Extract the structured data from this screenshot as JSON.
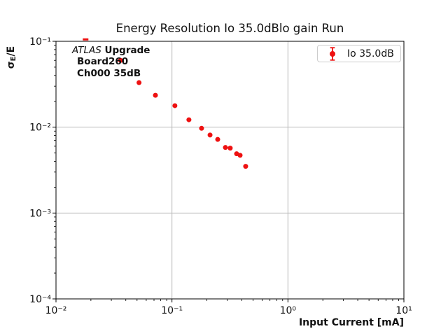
{
  "figure": {
    "background": "#ffffff",
    "marker_color": "#ee1111",
    "grid_color": "#b8b8b8",
    "legend_border_color": "#cccccc"
  },
  "title": "Energy Resolution Io 35.0dBlo gain Run",
  "axes": {
    "xlabel": "Input Current [mA]",
    "ylabel_sigma": "σ",
    "ylabel_sub": "E",
    "ylabel_rest": "/E",
    "x_tick_exponents": [
      -2,
      -1,
      0,
      1
    ],
    "y_tick_exponents": [
      -1,
      -2,
      -3,
      -4
    ]
  },
  "annotation": {
    "line1_italic": "ATLAS",
    "line1_bold": "Upgrade",
    "line2": "Board260",
    "line3": "Ch000 35dB"
  },
  "legend": {
    "label": "Io 35.0dB"
  },
  "chart_data": {
    "type": "scatter",
    "title": "Energy Resolution Io 35.0dBlo gain Run",
    "xlabel": "Input Current [mA]",
    "ylabel": "sigma_E/E",
    "xscale": "log",
    "yscale": "log",
    "xlim": [
      0.01,
      10
    ],
    "ylim": [
      0.0001,
      0.1
    ],
    "grid": true,
    "legend_position": "upper right",
    "series": [
      {
        "name": "Io 35.0dB",
        "color": "#ee1111",
        "marker": "o",
        "errorbars": true,
        "x": [
          0.018,
          0.036,
          0.052,
          0.072,
          0.106,
          0.14,
          0.18,
          0.213,
          0.248,
          0.289,
          0.318,
          0.361,
          0.387,
          0.432
        ],
        "y": [
          0.104,
          0.06,
          0.033,
          0.0235,
          0.0178,
          0.0122,
          0.0097,
          0.0081,
          0.0072,
          0.0058,
          0.0057,
          0.0049,
          0.0047,
          0.0035
        ]
      }
    ]
  }
}
